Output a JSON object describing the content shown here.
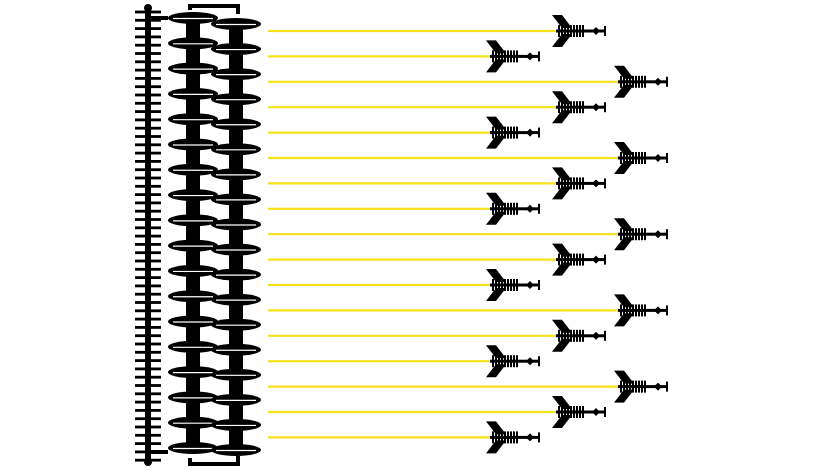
{
  "colors": {
    "background": "#ffffff",
    "ink": "#000000",
    "line": "#f5e21a"
  },
  "icons": {
    "spine": "vertical-spine-icon",
    "stack": "disc-stack-icon",
    "arrow": "chevron-arrow-icon"
  },
  "lines": [
    {
      "id": 1,
      "tier": 2
    },
    {
      "id": 2,
      "tier": 1
    },
    {
      "id": 3,
      "tier": 3
    },
    {
      "id": 4,
      "tier": 2
    },
    {
      "id": 5,
      "tier": 1
    },
    {
      "id": 6,
      "tier": 3
    },
    {
      "id": 7,
      "tier": 2
    },
    {
      "id": 8,
      "tier": 1
    },
    {
      "id": 9,
      "tier": 3
    },
    {
      "id": 10,
      "tier": 2
    },
    {
      "id": 11,
      "tier": 1
    },
    {
      "id": 12,
      "tier": 3
    },
    {
      "id": 13,
      "tier": 2
    },
    {
      "id": 14,
      "tier": 1
    },
    {
      "id": 15,
      "tier": 3
    },
    {
      "id": 16,
      "tier": 2
    },
    {
      "id": 17,
      "tier": 1
    }
  ]
}
